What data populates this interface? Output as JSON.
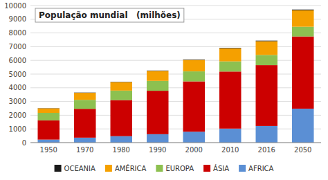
{
  "chart_data": {
    "type": "bar",
    "stacked": true,
    "title": "População mundial   (milhões)",
    "categories": [
      "1950",
      "1970",
      "1980",
      "1990",
      "2000",
      "2010",
      "2016",
      "2050"
    ],
    "series": [
      {
        "name": "AFRICA",
        "color": "#5b8fd4",
        "values": [
          221,
          362,
          470,
          615,
          796,
          1022,
          1216,
          2478
        ]
      },
      {
        "name": "ÁSIA",
        "color": "#cc0000",
        "values": [
          1402,
          2102,
          2632,
          3168,
          3672,
          4164,
          4436,
          5267
        ]
      },
      {
        "name": "EUROPA",
        "color": "#8dc050",
        "values": [
          549,
          656,
          694,
          722,
          729,
          740,
          743,
          707
        ]
      },
      {
        "name": "AMÉRICA",
        "color": "#f5a000",
        "values": [
          330,
          513,
          617,
          727,
          840,
          943,
          1005,
          1200
        ]
      },
      {
        "name": "OCEANIA",
        "color": "#1a1a1a",
        "values": [
          13,
          19,
          23,
          27,
          31,
          37,
          40,
          55
        ]
      }
    ],
    "ylim": [
      0,
      10000
    ],
    "yticks": [
      0,
      1000,
      2000,
      3000,
      4000,
      5000,
      6000,
      7000,
      8000,
      9000,
      10000
    ],
    "grid": true,
    "legend": "bottom"
  }
}
